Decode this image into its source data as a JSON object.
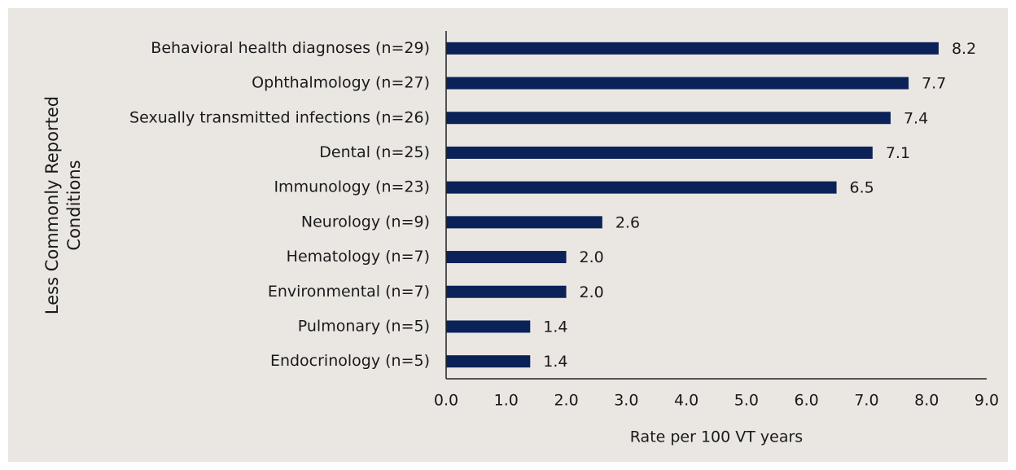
{
  "chart_data": {
    "type": "barh",
    "ylabel": [
      "Less  Commonly Reported",
      "Conditions"
    ],
    "xlabel": "Rate per 100 VT years",
    "categories": [
      "Behavioral health diagnoses (n=29)",
      "Ophthalmology (n=27)",
      "Sexually transmitted infections (n=26)",
      "Dental (n=25)",
      "Immunology (n=23)",
      "Neurology (n=9)",
      "Hematology (n=7)",
      "Environmental (n=7)",
      "Pulmonary (n=5)",
      "Endocrinology (n=5)"
    ],
    "values": [
      8.2,
      7.7,
      7.4,
      7.1,
      6.5,
      2.6,
      2.0,
      2.0,
      1.4,
      1.4
    ],
    "value_labels": [
      "8.2",
      "7.7",
      "7.4",
      "7.1",
      "6.5",
      "2.6",
      "2.0",
      "2.0",
      "1.4",
      "1.4"
    ],
    "color": "#0b2258",
    "xlim": [
      0,
      9
    ],
    "xticks": [
      {
        "value": 0,
        "label": "0.0"
      },
      {
        "value": 1,
        "label": "1.0"
      },
      {
        "value": 2,
        "label": "2.0"
      },
      {
        "value": 3,
        "label": "3.0"
      },
      {
        "value": 4,
        "label": "4.0"
      },
      {
        "value": 5,
        "label": "5.0"
      },
      {
        "value": 6,
        "label": "6.0"
      },
      {
        "value": 7,
        "label": "7.0"
      },
      {
        "value": 8,
        "label": "8.0"
      },
      {
        "value": 9,
        "label": "9.0"
      }
    ]
  }
}
